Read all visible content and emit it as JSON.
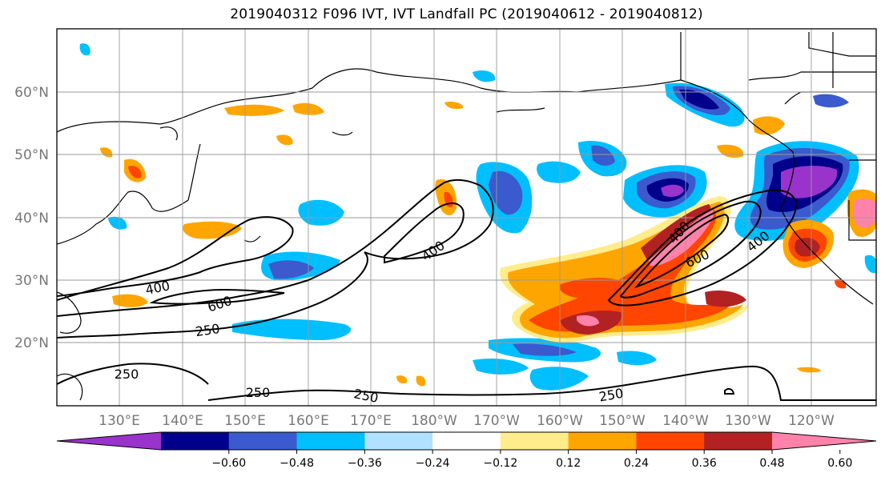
{
  "title": "2019040312 F096 IVT, IVT Landfall PC (2019040612 - 2019040812)",
  "lat_labels": [
    "60°N",
    "50°N",
    "40°N",
    "30°N",
    "20°N"
  ],
  "lon_labels": [
    "130°E",
    "140°E",
    "150°E",
    "160°E",
    "170°E",
    "180°W",
    "170°W",
    "160°W",
    "150°W",
    "140°W",
    "130°W",
    "120°W"
  ],
  "contour_labels": [
    "400",
    "600",
    "250",
    "400",
    "250",
    "250",
    "600",
    "400",
    "400",
    "250",
    "250",
    "250"
  ],
  "colorbar": {
    "ticks": [
      "−0.60",
      "−0.48",
      "−0.36",
      "−0.24",
      "−0.12",
      "0.12",
      "0.24",
      "0.36",
      "0.48",
      "0.60"
    ],
    "colors": [
      "#9933cc",
      "#00008b",
      "#3a5acd",
      "#00bfff",
      "#b0e2ff",
      "#ffffff",
      "#ffec8b",
      "#ffa500",
      "#ff4500",
      "#b22222",
      "#ff82ab"
    ]
  }
}
